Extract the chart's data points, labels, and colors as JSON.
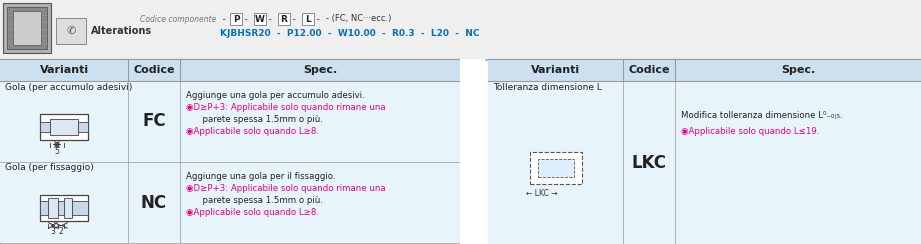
{
  "bg_color": "#ffffff",
  "header_bg": "#cde0f0",
  "table_bg": "#e8f4fb",
  "border_color": "#999999",
  "blue_text": "#0070c0",
  "dark_text": "#222222",
  "pink_bullet": "#e8007a",
  "top_bar_bg": "#efefef",
  "left_table": {
    "headers": [
      "Varianti",
      "Codice",
      "Spec."
    ],
    "rows": [
      {
        "variant_label": "Gola (per accumulo adesivi)",
        "code": "FC",
        "spec_lines": [
          "Aggiunge una gola per accumulo adesivi.",
          "◉D≥P+3: Applicabile solo quando rimane una",
          "      parete spessa 1.5mm o più.",
          "◉Applicabile solo quando L≥8."
        ]
      },
      {
        "variant_label": "Gola (per fissaggio)",
        "code": "NC",
        "spec_lines": [
          "Aggiunge una gola per il fissaggio.",
          "◉D≥P+3: Applicabile solo quando rimane una",
          "      parete spessa 1.5mm o più.",
          "◉Applicabile solo quando L≥8."
        ]
      }
    ]
  },
  "right_table": {
    "headers": [
      "Varianti",
      "Codice",
      "Spec."
    ],
    "rows": [
      {
        "variant_label": "Tolleranza dimensione L",
        "code": "LKC",
        "spec_lines": [
          "Modifica tolleranza dimensione L⁰₋₀₎₅.",
          "◉Applicabile solo quando L≤19."
        ]
      }
    ]
  },
  "top_formula_label": "Codice componente",
  "top_formula_parts": [
    "P",
    "W",
    "R",
    "L"
  ],
  "top_formula_suffix": "- (FC, NC···ecc.)",
  "top_example": "KJBHSR20  -  P12.00  -  W10.00  -  R0.3  -  L20  -  NC"
}
